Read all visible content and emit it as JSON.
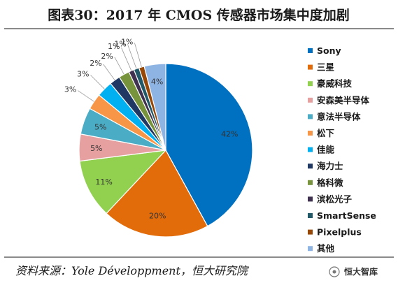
{
  "title": "图表30：2017 年 CMOS 传感器市场集中度加剧",
  "source": "资料来源：Yole Développment，恒大研究院",
  "watermark": "恒大智库",
  "chart_data": {
    "type": "pie",
    "legend_position": "right",
    "slices": [
      {
        "name": "Sony",
        "value": 42,
        "label": "42%",
        "color": "#0070C0"
      },
      {
        "name": "三星",
        "value": 20,
        "label": "20%",
        "color": "#E26B0A"
      },
      {
        "name": "豪威科技",
        "value": 11,
        "label": "11%",
        "color": "#92D050"
      },
      {
        "name": "安森美半导体",
        "value": 5,
        "label": "5%",
        "color": "#E6A0A0"
      },
      {
        "name": "意法半导体",
        "value": 5,
        "label": "5%",
        "color": "#4BACC6"
      },
      {
        "name": "松下",
        "value": 3,
        "label": "3%",
        "color": "#F79646"
      },
      {
        "name": "佳能",
        "value": 3,
        "label": "3%",
        "color": "#00B0F0"
      },
      {
        "name": "海力士",
        "value": 2,
        "label": "2%",
        "color": "#1F3864"
      },
      {
        "name": "格科微",
        "value": 2,
        "label": "2%",
        "color": "#77933C"
      },
      {
        "name": "滨松光子",
        "value": 1,
        "label": "1%",
        "color": "#403151"
      },
      {
        "name": "SmartSense",
        "value": 1,
        "label": "1%",
        "color": "#215968"
      },
      {
        "name": "Pixelplus",
        "value": 1,
        "label": "1%",
        "color": "#974706"
      },
      {
        "name": "其他",
        "value": 4,
        "label": "4%",
        "color": "#8EB4E3"
      }
    ]
  }
}
